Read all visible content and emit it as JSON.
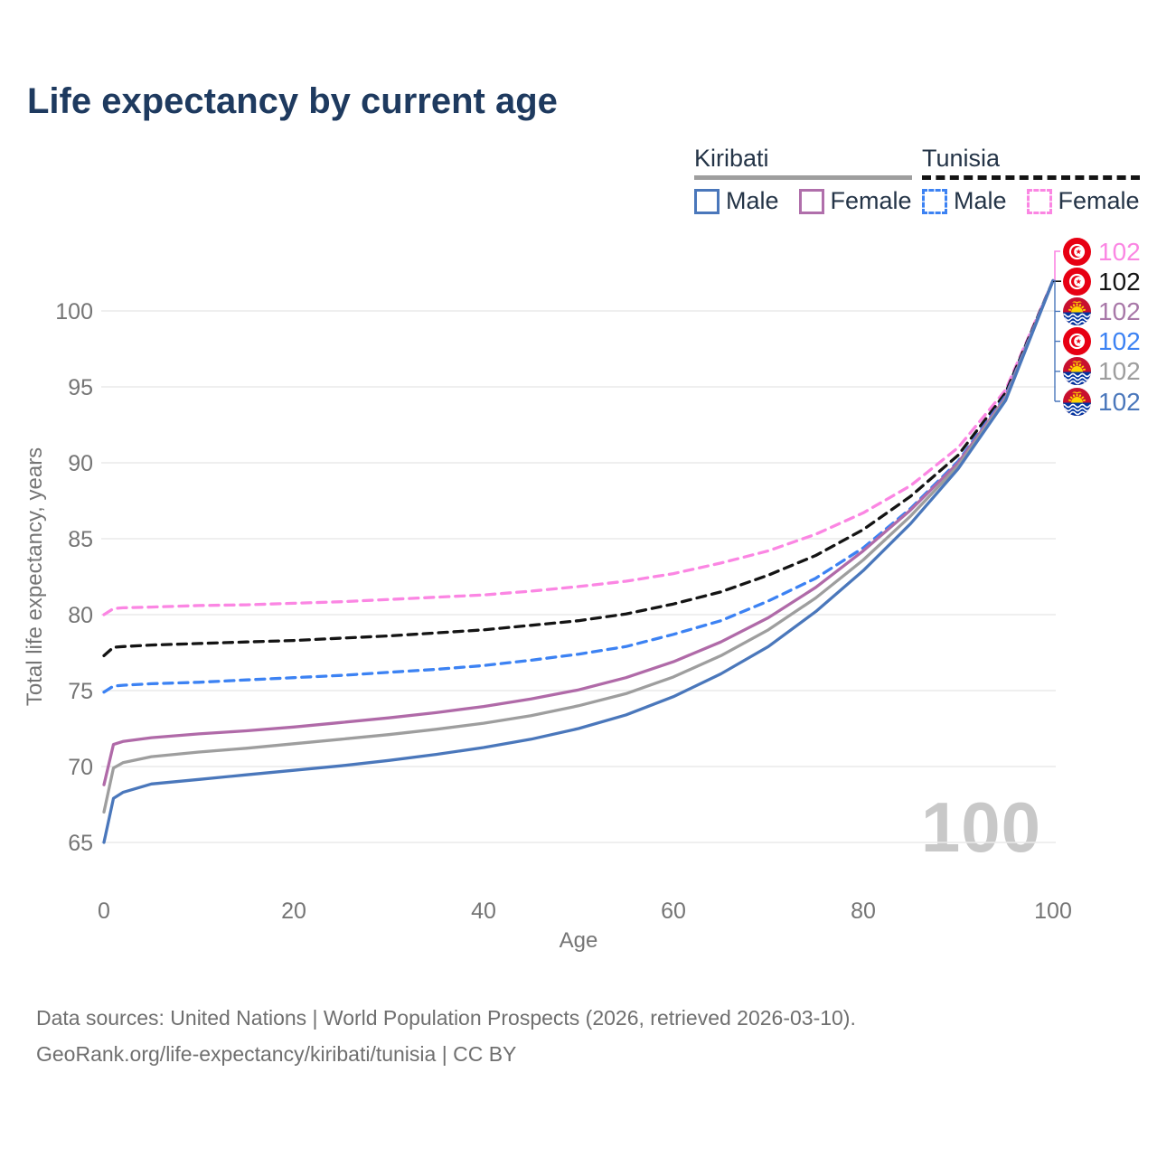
{
  "title": "Life expectancy by current age",
  "watermark_current_age": "100",
  "legend": {
    "groups": [
      {
        "country": "Kiribati",
        "line_style": "solid",
        "underline_color": "#9e9e9e",
        "items": [
          {
            "label": "Male",
            "color": "#4a77bb",
            "dashed": false
          },
          {
            "label": "Female",
            "color": "#b06fab",
            "dashed": false
          }
        ]
      },
      {
        "country": "Tunisia",
        "line_style": "dashed",
        "underline_color": "#141414",
        "items": [
          {
            "label": "Male",
            "color": "#3c82f3",
            "dashed": true
          },
          {
            "label": "Female",
            "color": "#fb86e3",
            "dashed": true
          }
        ]
      }
    ]
  },
  "footer": {
    "line1": "Data sources: United Nations | World Population Prospects (2026, retrieved 2026-03-10).",
    "line2": "GeoRank.org/life-expectancy/kiribati/tunisia | CC BY"
  },
  "chart_data": {
    "type": "line",
    "title": "Life expectancy by current age",
    "xlabel": "Age",
    "ylabel": "Total life expectancy, years",
    "xlim": [
      0,
      100
    ],
    "ylim": [
      63,
      103
    ],
    "x_ticks": [
      0,
      20,
      40,
      60,
      80,
      100
    ],
    "y_ticks": [
      65,
      70,
      75,
      80,
      85,
      90,
      95,
      100
    ],
    "grid": "horizontal-only",
    "legend_position": "top-right",
    "x": [
      0,
      1,
      2,
      5,
      10,
      15,
      20,
      25,
      30,
      35,
      40,
      45,
      50,
      55,
      60,
      65,
      70,
      75,
      80,
      85,
      90,
      95,
      100
    ],
    "series": [
      {
        "name": "Tunisia Female",
        "country": "Tunisia",
        "sex": "Female",
        "color": "#fb86e3",
        "dashed": true,
        "end_value": 102,
        "values": [
          80.0,
          80.4,
          80.45,
          80.5,
          80.6,
          80.65,
          80.75,
          80.85,
          81.0,
          81.15,
          81.3,
          81.55,
          81.85,
          82.2,
          82.7,
          83.4,
          84.2,
          85.3,
          86.7,
          88.5,
          91.0,
          94.8,
          102
        ]
      },
      {
        "name": "Tunisia",
        "country": "Tunisia",
        "sex": "All",
        "color": "#141414",
        "dashed": true,
        "end_value": 102,
        "values": [
          77.3,
          77.85,
          77.9,
          78.0,
          78.1,
          78.2,
          78.3,
          78.45,
          78.6,
          78.8,
          79.0,
          79.3,
          79.6,
          80.05,
          80.7,
          81.5,
          82.6,
          83.9,
          85.6,
          87.8,
          90.5,
          94.6,
          102
        ]
      },
      {
        "name": "Tunisia Male",
        "country": "Tunisia",
        "sex": "Male",
        "color": "#3c82f3",
        "dashed": true,
        "end_value": 102,
        "values": [
          74.9,
          75.3,
          75.35,
          75.45,
          75.55,
          75.7,
          75.85,
          76.0,
          76.2,
          76.4,
          76.65,
          77.0,
          77.4,
          77.9,
          78.7,
          79.6,
          80.9,
          82.4,
          84.4,
          87.0,
          90.1,
          94.4,
          102
        ]
      },
      {
        "name": "Kiribati Female",
        "country": "Kiribati",
        "sex": "Female",
        "color": "#b06aa8",
        "dashed": false,
        "end_value": 102,
        "values": [
          68.8,
          71.45,
          71.65,
          71.9,
          72.15,
          72.35,
          72.6,
          72.9,
          73.2,
          73.55,
          73.95,
          74.45,
          75.05,
          75.85,
          76.9,
          78.2,
          79.8,
          81.8,
          84.2,
          86.9,
          90.0,
          94.3,
          102
        ]
      },
      {
        "name": "Kiribati",
        "country": "Kiribati",
        "sex": "All",
        "color": "#9e9e9e",
        "dashed": false,
        "end_value": 102,
        "values": [
          67.0,
          69.9,
          70.25,
          70.65,
          70.95,
          71.2,
          71.5,
          71.8,
          72.1,
          72.45,
          72.85,
          73.35,
          74.0,
          74.8,
          75.9,
          77.3,
          79.0,
          81.1,
          83.6,
          86.5,
          89.8,
          94.2,
          102
        ]
      },
      {
        "name": "Kiribati Male",
        "country": "Kiribati",
        "sex": "Male",
        "color": "#4a77bb",
        "dashed": false,
        "end_value": 102,
        "values": [
          65.0,
          67.9,
          68.3,
          68.85,
          69.15,
          69.45,
          69.75,
          70.05,
          70.4,
          70.8,
          71.25,
          71.8,
          72.5,
          73.4,
          74.6,
          76.1,
          77.9,
          80.2,
          82.9,
          86.0,
          89.6,
          94.1,
          102
        ]
      }
    ],
    "end_labels": [
      {
        "flag": "tunisia",
        "series": "Tunisia Female",
        "label": "102",
        "color": "#fb86e3"
      },
      {
        "flag": "tunisia",
        "series": "Tunisia",
        "label": "102",
        "color": "#141414"
      },
      {
        "flag": "kiribati",
        "series": "Kiribati Female",
        "label": "102",
        "color": "#a878a8"
      },
      {
        "flag": "tunisia",
        "series": "Tunisia Male",
        "label": "102",
        "color": "#3c82f3"
      },
      {
        "flag": "kiribati",
        "series": "Kiribati",
        "label": "102",
        "color": "#9e9e9e"
      },
      {
        "flag": "kiribati",
        "series": "Kiribati Male",
        "label": "102",
        "color": "#4a77bb"
      }
    ]
  }
}
